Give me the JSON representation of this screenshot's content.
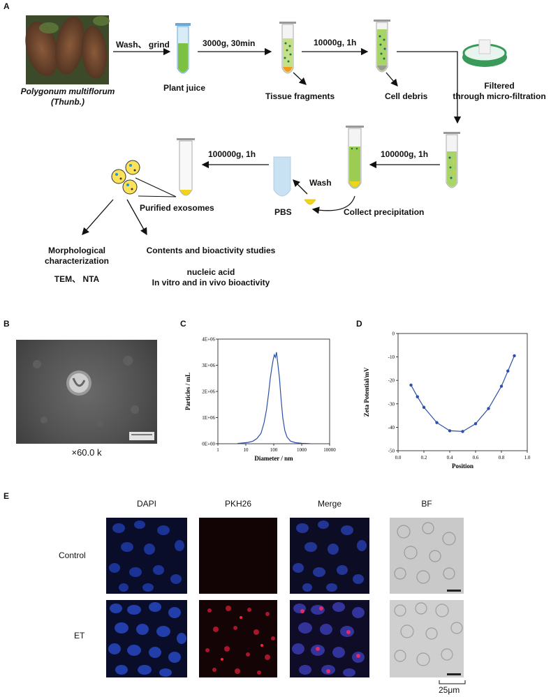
{
  "panels": {
    "A": "A",
    "B": "B",
    "C": "C",
    "D": "D",
    "E": "E"
  },
  "workflow": {
    "plant_name": "Polygonum multiflorum",
    "plant_author": "(Thunb.)",
    "step_wash_grind": "Wash、 grind",
    "plant_juice": "Plant juice",
    "spin_1": "3000g, 30min",
    "tissue_fragments": "Tissue fragments",
    "spin_2": "10000g, 1h",
    "cell_debris": "Cell debris",
    "filtered_1": "Filtered",
    "filtered_2": "through micro-filtration",
    "spin_3": "100000g, 1h",
    "collect_precipitation": "Collect precipitation",
    "wash": "Wash",
    "pbs": "PBS",
    "spin_4": "100000g, 1h",
    "purified_exosomes": "Purified exosomes",
    "morph_1": "Morphological",
    "morph_2": "characterization",
    "tem_nta": "TEM、 NTA",
    "contents_title": "Contents and bioactivity studies",
    "nucleic_acid": "nucleic acid",
    "in_vitro": "In vitro and in vivo bioactivity"
  },
  "tem": {
    "magnification": "×60.0 k"
  },
  "chart_data": [
    {
      "panel": "C",
      "type": "line",
      "xlabel": "Diameter / nm",
      "ylabel": "Particles / mL",
      "x_scale": "log",
      "xlim": [
        1,
        10000
      ],
      "ylim": [
        0,
        4000000
      ],
      "x_ticks": [
        "1",
        "10",
        "100",
        "1000",
        "10000"
      ],
      "y_ticks": [
        "0E+00",
        "1E+06",
        "2E+06",
        "3E+06",
        "4E+06"
      ],
      "series": [
        {
          "color": "#2b4fa8",
          "x": [
            5,
            8,
            12,
            18,
            25,
            35,
            45,
            55,
            65,
            75,
            85,
            95,
            105,
            115,
            125,
            135,
            145,
            160,
            180,
            210,
            250,
            300,
            400,
            600,
            1000,
            2000
          ],
          "y": [
            10000,
            30000,
            50000,
            100000,
            200000,
            400000,
            800000,
            1300000,
            1900000,
            2500000,
            2900000,
            3200000,
            3400000,
            3300000,
            3500000,
            3200000,
            2900000,
            2500000,
            1800000,
            1000000,
            500000,
            250000,
            100000,
            40000,
            20000,
            5000
          ]
        }
      ]
    },
    {
      "panel": "D",
      "type": "line",
      "xlabel": "Position",
      "ylabel": "Zeta Potential/mV",
      "xlim": [
        0.0,
        1.0
      ],
      "ylim": [
        -50,
        0
      ],
      "x_ticks": [
        "0.0",
        "0.2",
        "0.4",
        "0.6",
        "0.8",
        "1.0"
      ],
      "y_ticks": [
        "-50",
        "-40",
        "-30",
        "-20",
        "-10",
        "0"
      ],
      "series": [
        {
          "color": "#2b4fa8",
          "x": [
            0.1,
            0.15,
            0.2,
            0.3,
            0.4,
            0.5,
            0.6,
            0.7,
            0.8,
            0.85,
            0.9
          ],
          "y": [
            -22,
            -27,
            -31.5,
            -38,
            -41.5,
            -41.8,
            -38.5,
            -32,
            -22.5,
            -16,
            -9.5
          ]
        }
      ]
    }
  ],
  "microscopy": {
    "columns": [
      "DAPI",
      "PKH26",
      "Merge",
      "BF"
    ],
    "rows": [
      "Control",
      "ET"
    ],
    "scale_bar": "25μm"
  }
}
